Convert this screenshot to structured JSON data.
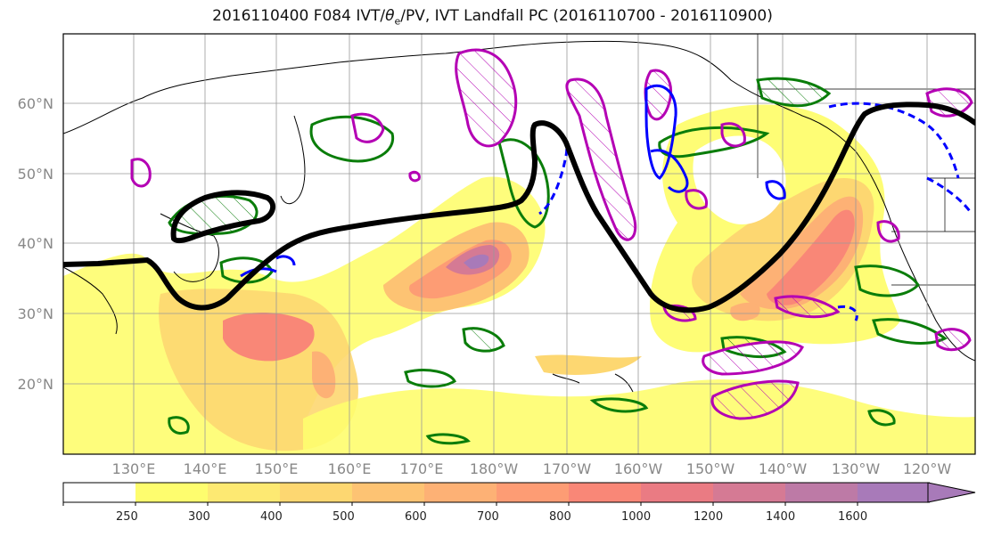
{
  "title_prefix": "2016110400 F084 IVT/",
  "title_theta": "θ",
  "title_sub": "e",
  "title_suffix": "/PV, IVT Landfall PC (2016110700 - 2016110900)",
  "lat_labels": [
    "60°N",
    "50°N",
    "40°N",
    "30°N",
    "20°N"
  ],
  "lon_labels": [
    "130°E",
    "140°E",
    "150°E",
    "160°E",
    "170°E",
    "180°W",
    "170°W",
    "160°W",
    "150°W",
    "140°W",
    "130°W",
    "120°W"
  ],
  "colorbar": {
    "ticks": [
      "250",
      "300",
      "400",
      "500",
      "600",
      "700",
      "800",
      "1000",
      "1200",
      "1400",
      "1600"
    ],
    "colors": [
      "#ffffff",
      "#fefd6e",
      "#fde972",
      "#fdd771",
      "#fdc373",
      "#fdb175",
      "#fd9c74",
      "#f98777",
      "#ea7b83",
      "#d57a94",
      "#bd7aa6",
      "#a87ab9"
    ]
  },
  "legend_colors": {
    "theta_e": "#0a7d0a",
    "pv_positive": "#b400b4",
    "pv_negative": "#0000ff",
    "ivt_landfall": "#000000"
  }
}
